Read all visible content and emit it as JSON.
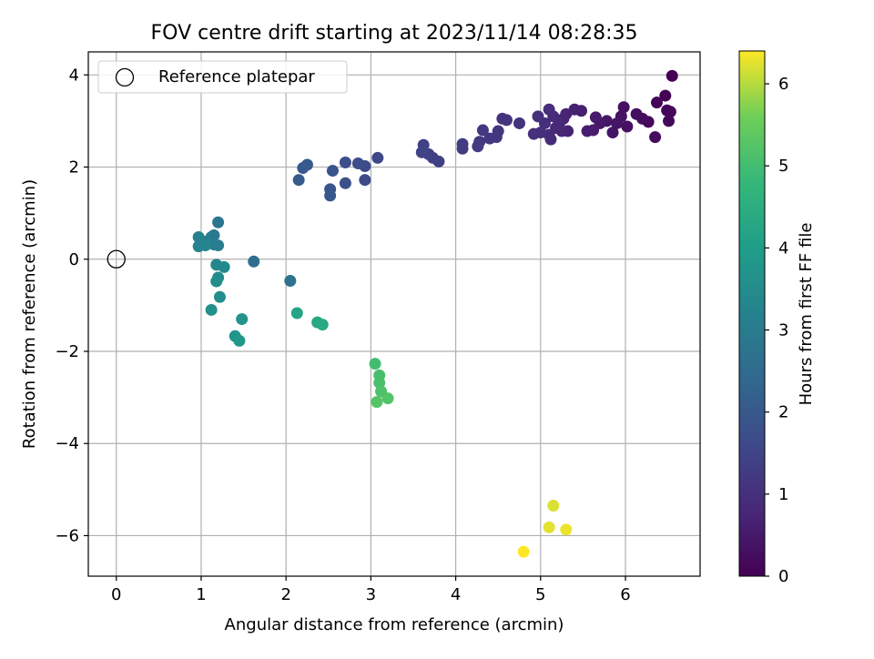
{
  "chart_data": {
    "type": "scatter",
    "title": "FOV centre drift starting at 2023/11/14 08:28:35",
    "xlabel": "Angular distance from reference (arcmin)",
    "ylabel": "Rotation from reference (arcmin)",
    "xlim": [
      -0.33,
      6.88
    ],
    "ylim": [
      -6.88,
      4.5
    ],
    "xticks": [
      0,
      1,
      2,
      3,
      4,
      5,
      6
    ],
    "yticks": [
      -6,
      -4,
      -2,
      0,
      2,
      4
    ],
    "xtick_labels": [
      "0",
      "1",
      "2",
      "3",
      "4",
      "5",
      "6"
    ],
    "ytick_labels": [
      "−6",
      "−4",
      "−2",
      "0",
      "2",
      "4"
    ],
    "grid": true,
    "legend": {
      "position": "top-left",
      "entries": [
        {
          "label": "Reference platepar",
          "marker": "open-circle"
        }
      ]
    },
    "reference_point": {
      "x": 0,
      "y": 0
    },
    "colorbar": {
      "label": "Hours from first FF file",
      "colormap": "viridis",
      "range": [
        0,
        6.4
      ],
      "ticks": [
        0,
        1,
        2,
        3,
        4,
        5,
        6
      ],
      "tick_labels": [
        "0",
        "1",
        "2",
        "3",
        "4",
        "5",
        "6"
      ]
    },
    "points": [
      {
        "x": 6.55,
        "y": 3.98,
        "c": 0.0
      },
      {
        "x": 6.47,
        "y": 3.55,
        "c": 0.03
      },
      {
        "x": 6.37,
        "y": 3.4,
        "c": 0.06
      },
      {
        "x": 6.49,
        "y": 3.23,
        "c": 0.09
      },
      {
        "x": 6.53,
        "y": 3.2,
        "c": 0.1
      },
      {
        "x": 6.27,
        "y": 2.98,
        "c": 0.15
      },
      {
        "x": 6.51,
        "y": 3.0,
        "c": 0.12
      },
      {
        "x": 6.35,
        "y": 2.65,
        "c": 0.2
      },
      {
        "x": 6.2,
        "y": 3.05,
        "c": 0.22
      },
      {
        "x": 6.13,
        "y": 3.15,
        "c": 0.27
      },
      {
        "x": 6.02,
        "y": 2.88,
        "c": 0.3
      },
      {
        "x": 5.98,
        "y": 3.3,
        "c": 0.33
      },
      {
        "x": 5.95,
        "y": 3.1,
        "c": 0.35
      },
      {
        "x": 5.9,
        "y": 2.95,
        "c": 0.4
      },
      {
        "x": 5.85,
        "y": 2.75,
        "c": 0.42
      },
      {
        "x": 5.78,
        "y": 3.0,
        "c": 0.45
      },
      {
        "x": 5.7,
        "y": 2.95,
        "c": 0.5
      },
      {
        "x": 5.65,
        "y": 3.08,
        "c": 0.52
      },
      {
        "x": 5.62,
        "y": 2.8,
        "c": 0.55
      },
      {
        "x": 5.55,
        "y": 2.78,
        "c": 0.6
      },
      {
        "x": 5.48,
        "y": 3.22,
        "c": 0.62
      },
      {
        "x": 5.4,
        "y": 3.25,
        "c": 0.65
      },
      {
        "x": 5.32,
        "y": 2.78,
        "c": 0.7
      },
      {
        "x": 5.3,
        "y": 3.15,
        "c": 0.72
      },
      {
        "x": 5.27,
        "y": 3.05,
        "c": 0.75
      },
      {
        "x": 5.25,
        "y": 2.78,
        "c": 0.78
      },
      {
        "x": 5.22,
        "y": 2.95,
        "c": 0.8
      },
      {
        "x": 5.18,
        "y": 2.85,
        "c": 0.82
      },
      {
        "x": 5.15,
        "y": 3.1,
        "c": 0.85
      },
      {
        "x": 5.12,
        "y": 2.6,
        "c": 0.88
      },
      {
        "x": 5.1,
        "y": 2.7,
        "c": 0.9
      },
      {
        "x": 5.1,
        "y": 3.25,
        "c": 0.92
      },
      {
        "x": 5.05,
        "y": 2.95,
        "c": 0.95
      },
      {
        "x": 5.0,
        "y": 2.75,
        "c": 0.98
      },
      {
        "x": 4.97,
        "y": 3.1,
        "c": 1.0
      },
      {
        "x": 4.92,
        "y": 2.72,
        "c": 1.02
      },
      {
        "x": 4.75,
        "y": 2.95,
        "c": 1.05
      },
      {
        "x": 4.6,
        "y": 3.02,
        "c": 1.08
      },
      {
        "x": 4.55,
        "y": 3.05,
        "c": 1.1
      },
      {
        "x": 4.5,
        "y": 2.78,
        "c": 1.12
      },
      {
        "x": 4.48,
        "y": 2.65,
        "c": 1.15
      },
      {
        "x": 4.4,
        "y": 2.62,
        "c": 1.18
      },
      {
        "x": 4.32,
        "y": 2.8,
        "c": 1.2
      },
      {
        "x": 4.28,
        "y": 2.55,
        "c": 1.22
      },
      {
        "x": 4.26,
        "y": 2.45,
        "c": 1.25
      },
      {
        "x": 4.08,
        "y": 2.4,
        "c": 1.28
      },
      {
        "x": 4.08,
        "y": 2.5,
        "c": 1.3
      },
      {
        "x": 3.8,
        "y": 2.12,
        "c": 1.35
      },
      {
        "x": 3.73,
        "y": 2.2,
        "c": 1.38
      },
      {
        "x": 3.68,
        "y": 2.28,
        "c": 1.4
      },
      {
        "x": 3.62,
        "y": 2.48,
        "c": 1.42
      },
      {
        "x": 3.6,
        "y": 2.32,
        "c": 1.45
      },
      {
        "x": 3.08,
        "y": 2.2,
        "c": 1.55
      },
      {
        "x": 2.93,
        "y": 1.72,
        "c": 1.6
      },
      {
        "x": 2.93,
        "y": 2.02,
        "c": 1.65
      },
      {
        "x": 2.85,
        "y": 2.08,
        "c": 1.7
      },
      {
        "x": 2.7,
        "y": 2.1,
        "c": 1.75
      },
      {
        "x": 2.7,
        "y": 1.65,
        "c": 1.8
      },
      {
        "x": 2.55,
        "y": 1.92,
        "c": 1.85
      },
      {
        "x": 2.52,
        "y": 1.52,
        "c": 1.9
      },
      {
        "x": 2.52,
        "y": 1.38,
        "c": 1.95
      },
      {
        "x": 2.25,
        "y": 2.05,
        "c": 2.0
      },
      {
        "x": 2.2,
        "y": 1.98,
        "c": 2.02
      },
      {
        "x": 2.15,
        "y": 1.72,
        "c": 2.05
      },
      {
        "x": 1.62,
        "y": -0.05,
        "c": 2.6
      },
      {
        "x": 1.2,
        "y": 0.8,
        "c": 2.8
      },
      {
        "x": 1.15,
        "y": 0.52,
        "c": 2.9
      },
      {
        "x": 1.12,
        "y": 0.48,
        "c": 2.95
      },
      {
        "x": 1.2,
        "y": 0.3,
        "c": 3.0
      },
      {
        "x": 1.15,
        "y": 0.32,
        "c": 3.05
      },
      {
        "x": 1.05,
        "y": 0.38,
        "c": 3.1
      },
      {
        "x": 0.97,
        "y": 0.48,
        "c": 3.15
      },
      {
        "x": 0.97,
        "y": 0.28,
        "c": 3.2
      },
      {
        "x": 1.05,
        "y": 0.3,
        "c": 3.25
      },
      {
        "x": 1.18,
        "y": -0.12,
        "c": 3.35
      },
      {
        "x": 1.27,
        "y": -0.17,
        "c": 3.4
      },
      {
        "x": 1.2,
        "y": -0.4,
        "c": 3.45
      },
      {
        "x": 1.18,
        "y": -0.48,
        "c": 3.5
      },
      {
        "x": 1.22,
        "y": -0.82,
        "c": 3.55
      },
      {
        "x": 1.12,
        "y": -1.1,
        "c": 3.6
      },
      {
        "x": 1.48,
        "y": -1.3,
        "c": 3.7
      },
      {
        "x": 1.4,
        "y": -1.67,
        "c": 3.75
      },
      {
        "x": 1.45,
        "y": -1.77,
        "c": 3.8
      },
      {
        "x": 2.05,
        "y": -0.47,
        "c": 2.7
      },
      {
        "x": 2.13,
        "y": -1.17,
        "c": 4.2
      },
      {
        "x": 2.37,
        "y": -1.37,
        "c": 4.3
      },
      {
        "x": 2.43,
        "y": -1.42,
        "c": 4.35
      },
      {
        "x": 3.05,
        "y": -2.27,
        "c": 5.0
      },
      {
        "x": 3.1,
        "y": -2.52,
        "c": 5.05
      },
      {
        "x": 3.1,
        "y": -2.68,
        "c": 5.1
      },
      {
        "x": 3.12,
        "y": -2.87,
        "c": 5.15
      },
      {
        "x": 3.2,
        "y": -3.02,
        "c": 5.2
      },
      {
        "x": 3.07,
        "y": -3.1,
        "c": 5.25
      },
      {
        "x": 5.15,
        "y": -5.35,
        "c": 6.2
      },
      {
        "x": 5.1,
        "y": -5.82,
        "c": 6.25
      },
      {
        "x": 5.3,
        "y": -5.87,
        "c": 6.3
      },
      {
        "x": 4.8,
        "y": -6.35,
        "c": 6.4
      }
    ]
  }
}
